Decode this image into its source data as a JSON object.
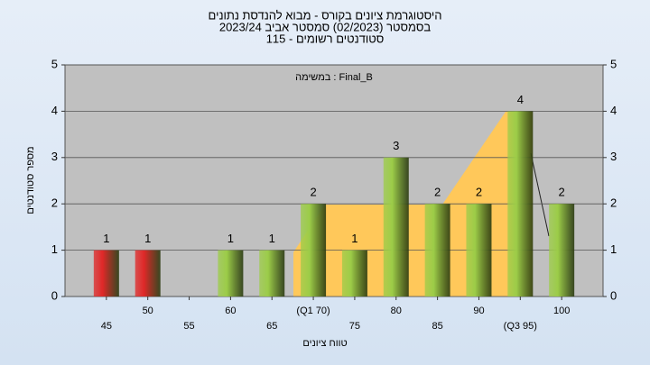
{
  "chart_data": {
    "type": "bar",
    "title": [
      "היסטוגרמת ציונים בקורס - מבוא להנדסת נתונים",
      "בסמסטר  (02/2023)  סמסטר אביב 2023/24",
      "סטודנטים רשומים - 115"
    ],
    "annotation": "במשימה : Final_B",
    "x_label": "טווח ציונים",
    "y_label": "מספר סטודנטים",
    "categories": [
      "45",
      "50",
      "55",
      "60",
      "65",
      "(Q1 70)",
      "75",
      "80",
      "85",
      "90",
      "(Q3 95)",
      "100"
    ],
    "values": [
      1,
      1,
      null,
      1,
      1,
      2,
      1,
      3,
      2,
      2,
      4,
      2
    ],
    "colors": [
      "#e02828",
      "#e02828",
      "#9ccc48",
      "#9ccc48",
      "#9ccc48",
      "#9ccc48",
      "#9ccc48",
      "#9ccc48",
      "#9ccc48",
      "#9ccc48",
      "#9ccc48",
      "#9ccc48"
    ],
    "ylim": [
      0,
      5
    ],
    "yticks": [
      0,
      1,
      2,
      3,
      4,
      5
    ],
    "y2lim": [
      0,
      5
    ],
    "y2ticks": [
      0,
      1,
      2,
      3,
      4,
      5
    ],
    "grid": true
  }
}
